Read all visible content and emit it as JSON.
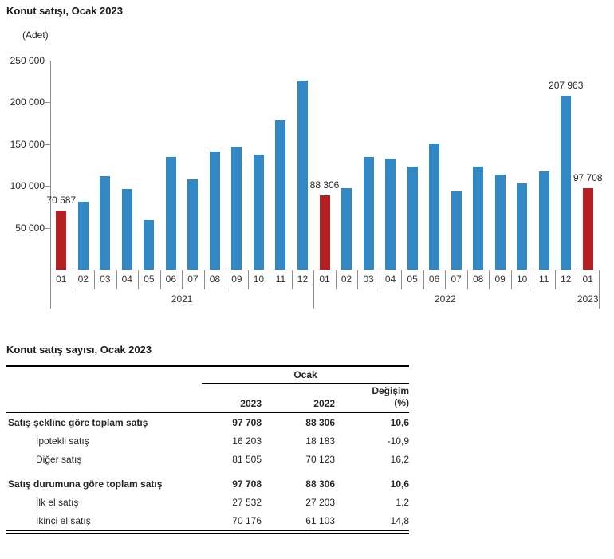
{
  "chart_data": {
    "type": "bar",
    "title": "Konut satışı, Ocak 2023",
    "unit_label": "(Adet)",
    "ylim": [
      0,
      250000
    ],
    "ytick_step": 50000,
    "grid": false,
    "legend": null,
    "bar_color": "#3287c5",
    "highlight_color": "#b41f23",
    "axis_color": "#8f8f8f",
    "yticks": [
      {
        "value": 50000,
        "label": "50 000"
      },
      {
        "value": 100000,
        "label": "100 000"
      },
      {
        "value": 150000,
        "label": "150 000"
      },
      {
        "value": 200000,
        "label": "200 000"
      },
      {
        "value": 250000,
        "label": "250 000"
      }
    ],
    "groups": [
      {
        "year": "2021",
        "months": [
          "01",
          "02",
          "03",
          "04",
          "05",
          "06",
          "07",
          "08",
          "09",
          "10",
          "11",
          "12"
        ],
        "values": [
          70587,
          81000,
          111200,
          95900,
          59200,
          134700,
          107800,
          141400,
          147100,
          137400,
          178800,
          226500
        ]
      },
      {
        "year": "2022",
        "months": [
          "01",
          "02",
          "03",
          "04",
          "05",
          "06",
          "07",
          "08",
          "09",
          "10",
          "11",
          "12"
        ],
        "values": [
          88306,
          97600,
          134200,
          133100,
          122800,
          150500,
          93900,
          123500,
          113400,
          102700,
          117800,
          207963
        ]
      },
      {
        "year": "2023",
        "months": [
          "01"
        ],
        "values": [
          97708
        ]
      }
    ],
    "highlighted_bars": [
      {
        "group": 0,
        "index": 0
      },
      {
        "group": 1,
        "index": 0
      },
      {
        "group": 2,
        "index": 0
      }
    ],
    "value_labels": [
      {
        "group": 0,
        "index": 0,
        "text": "70 587"
      },
      {
        "group": 1,
        "index": 0,
        "text": "88 306"
      },
      {
        "group": 1,
        "index": 11,
        "text": "207 963"
      },
      {
        "group": 2,
        "index": 0,
        "text": "97 708"
      }
    ]
  },
  "table": {
    "title": "Konut satış sayısı, Ocak 2023",
    "col_group_header": "Ocak",
    "columns": {
      "y2023": "2023",
      "y2022": "2022",
      "change_line1": "Değişim",
      "change_line2": "(%)"
    },
    "rows": [
      {
        "label": "Satış şekline göre toplam satış",
        "bold": true,
        "indent": false,
        "v2023": "97 708",
        "v2022": "88 306",
        "change": "10,6"
      },
      {
        "label": "İpotekli satış",
        "bold": false,
        "indent": true,
        "v2023": "16 203",
        "v2022": "18 183",
        "change": "-10,9"
      },
      {
        "label": "Diğer satış",
        "bold": false,
        "indent": true,
        "v2023": "81 505",
        "v2022": "70 123",
        "change": "16,2"
      },
      {
        "label": "Satış durumuna göre toplam satış",
        "bold": true,
        "indent": false,
        "v2023": "97 708",
        "v2022": "88 306",
        "change": "10,6"
      },
      {
        "label": "İlk el satış",
        "bold": false,
        "indent": true,
        "v2023": "27 532",
        "v2022": "27 203",
        "change": "1,2"
      },
      {
        "label": "İkinci el satış",
        "bold": false,
        "indent": true,
        "v2023": "70 176",
        "v2022": "61 103",
        "change": "14,8"
      }
    ]
  }
}
